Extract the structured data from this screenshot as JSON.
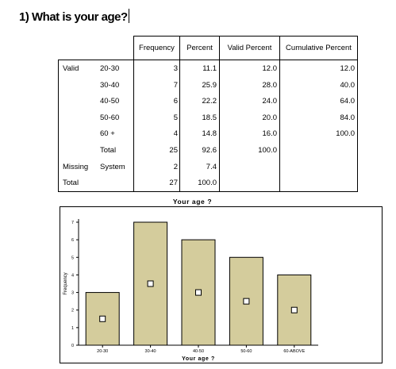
{
  "question": {
    "title": "1)  What is your age?"
  },
  "table": {
    "headers": [
      "Frequency",
      "Percent",
      "Valid Percent",
      "Cumulative Percent"
    ],
    "rows": [
      {
        "group": "Valid",
        "label": "20-30",
        "frequency": "3",
        "percent": "11.1",
        "valid_percent": "12.0",
        "cumulative_percent": "12.0"
      },
      {
        "group": "",
        "label": "30-40",
        "frequency": "7",
        "percent": "25.9",
        "valid_percent": "28.0",
        "cumulative_percent": "40.0"
      },
      {
        "group": "",
        "label": "40-50",
        "frequency": "6",
        "percent": "22.2",
        "valid_percent": "24.0",
        "cumulative_percent": "64.0"
      },
      {
        "group": "",
        "label": "50-60",
        "frequency": "5",
        "percent": "18.5",
        "valid_percent": "20.0",
        "cumulative_percent": "84.0"
      },
      {
        "group": "",
        "label": "60 +",
        "frequency": "4",
        "percent": "14.8",
        "valid_percent": "16.0",
        "cumulative_percent": "100.0"
      },
      {
        "group": "",
        "label": "Total",
        "frequency": "25",
        "percent": "92.6",
        "valid_percent": "100.0",
        "cumulative_percent": ""
      },
      {
        "group": "Missing",
        "label": "System",
        "frequency": "2",
        "percent": "7.4",
        "valid_percent": "",
        "cumulative_percent": ""
      },
      {
        "group": "Total",
        "label": "",
        "frequency": "27",
        "percent": "100.0",
        "valid_percent": "",
        "cumulative_percent": ""
      }
    ]
  },
  "chart_data": {
    "type": "bar",
    "title": "Your age ?",
    "xlabel": "Your age ?",
    "ylabel": "Frequency",
    "categories": [
      "20-30",
      "30-40",
      "40-50",
      "50-60",
      "60-ABOVE"
    ],
    "values": [
      3,
      7,
      6,
      5,
      4
    ],
    "ylim": [
      0,
      7
    ],
    "yticks": [
      "0",
      "1",
      "2",
      "3",
      "4",
      "5",
      "6",
      "7"
    ],
    "bar_color": "#d4cc9c",
    "marker_color": "#ffffff",
    "grid": false,
    "legend": "none"
  }
}
